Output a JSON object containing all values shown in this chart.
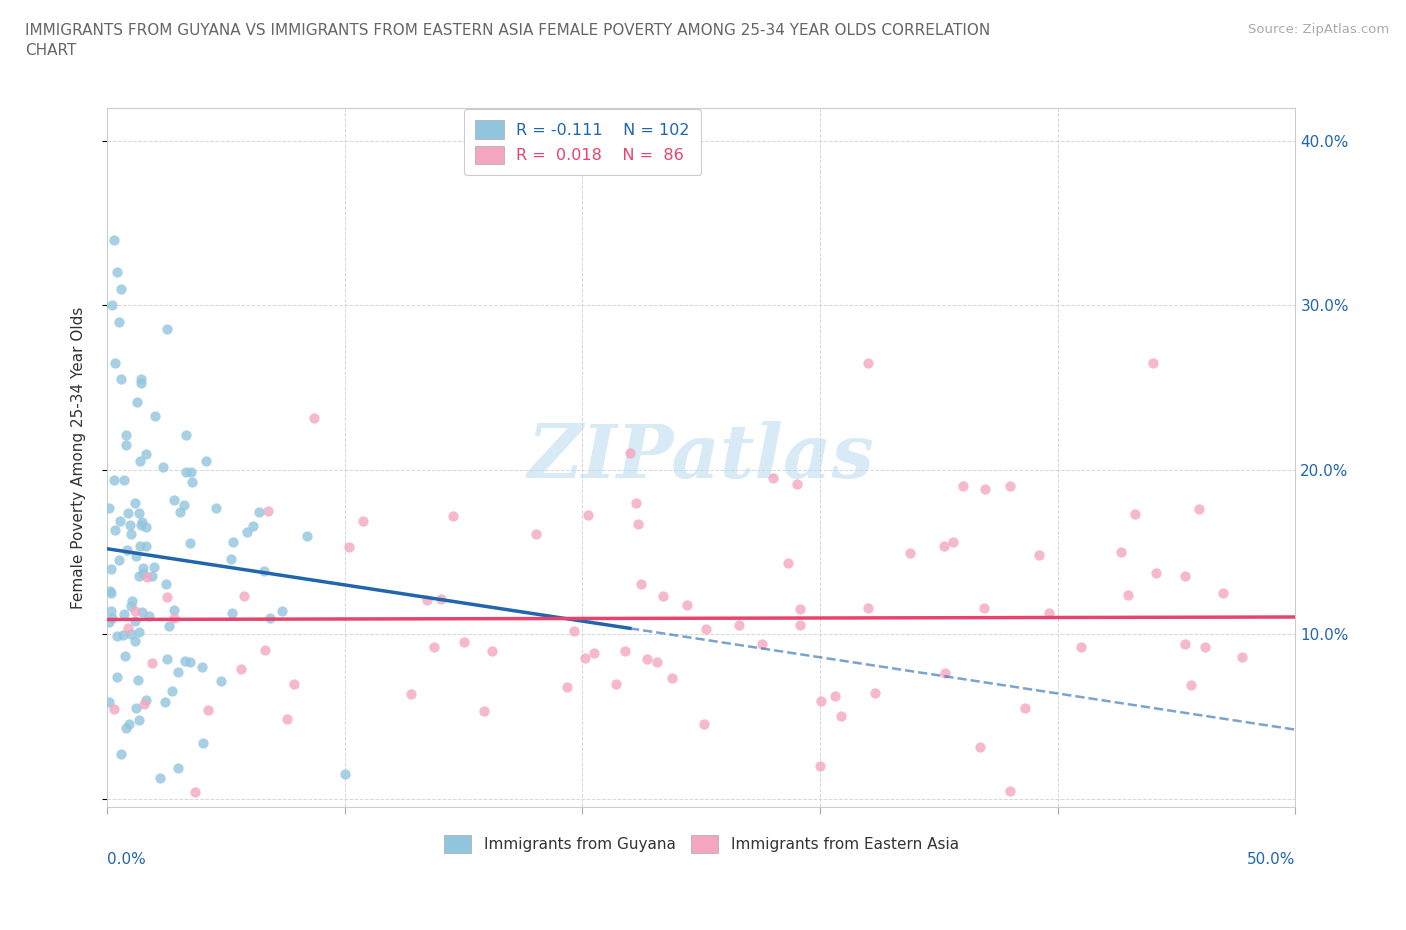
{
  "title": "IMMIGRANTS FROM GUYANA VS IMMIGRANTS FROM EASTERN ASIA FEMALE POVERTY AMONG 25-34 YEAR OLDS CORRELATION\nCHART",
  "source": "Source: ZipAtlas.com",
  "ylabel": "Female Poverty Among 25-34 Year Olds",
  "ytick_vals": [
    0.0,
    0.1,
    0.2,
    0.3,
    0.4
  ],
  "ytick_labels": [
    "",
    "10.0%",
    "20.0%",
    "30.0%",
    "40.0%"
  ],
  "xlim": [
    0.0,
    0.5
  ],
  "ylim": [
    -0.005,
    0.42
  ],
  "legend_r1": "R = -0.111",
  "legend_n1": "N = 102",
  "legend_r2": "R = 0.018",
  "legend_n2": "N =  86",
  "color_blue": "#92c5de",
  "color_pink": "#f4a6c0",
  "color_blue_dark": "#2166ac",
  "color_pink_dark": "#e8436e",
  "watermark": "ZIPatlas",
  "guyana_seed": 7,
  "eastern_seed": 12
}
